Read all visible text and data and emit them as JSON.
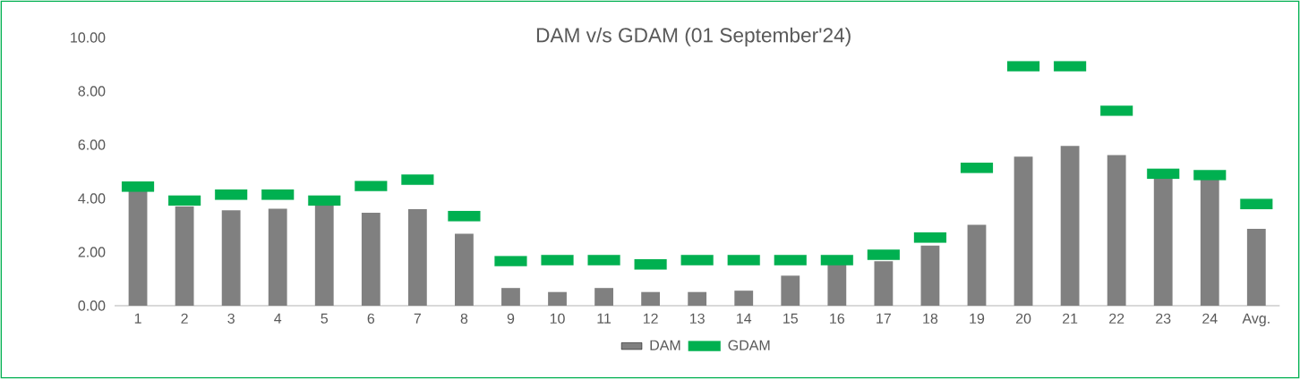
{
  "chart_data": {
    "type": "bar",
    "title": "DAM v/s GDAM (01 September'24)",
    "categories": [
      "1",
      "2",
      "3",
      "4",
      "5",
      "6",
      "7",
      "8",
      "9",
      "10",
      "11",
      "12",
      "13",
      "14",
      "15",
      "16",
      "17",
      "18",
      "19",
      "20",
      "21",
      "22",
      "23",
      "24",
      "Avg."
    ],
    "series": [
      {
        "name": "DAM",
        "color": "#808080",
        "values": [
          4.31,
          3.7,
          3.56,
          3.62,
          3.81,
          3.47,
          3.6,
          2.68,
          0.66,
          0.51,
          0.66,
          0.51,
          0.51,
          0.56,
          1.12,
          1.55,
          1.66,
          2.24,
          3.02,
          5.56,
          5.96,
          5.62,
          4.8,
          4.75,
          2.87
        ]
      },
      {
        "name": "GDAM",
        "type": "scatter",
        "color": "#00b050",
        "values": [
          4.44,
          3.92,
          4.14,
          4.14,
          3.92,
          4.46,
          4.7,
          3.34,
          1.66,
          1.7,
          1.7,
          1.54,
          1.7,
          1.7,
          1.7,
          1.7,
          1.9,
          2.54,
          5.14,
          8.93,
          8.93,
          7.27,
          4.92,
          4.87,
          3.79
        ]
      }
    ],
    "ylim": [
      0,
      10
    ],
    "yticks": [
      {
        "value": 0,
        "label": "0.00"
      },
      {
        "value": 2,
        "label": "2.00"
      },
      {
        "value": 4,
        "label": "4.00"
      },
      {
        "value": 6,
        "label": "6.00"
      },
      {
        "value": 8,
        "label": "8.00"
      },
      {
        "value": 10,
        "label": "10.00"
      }
    ],
    "legend": "bottom"
  }
}
